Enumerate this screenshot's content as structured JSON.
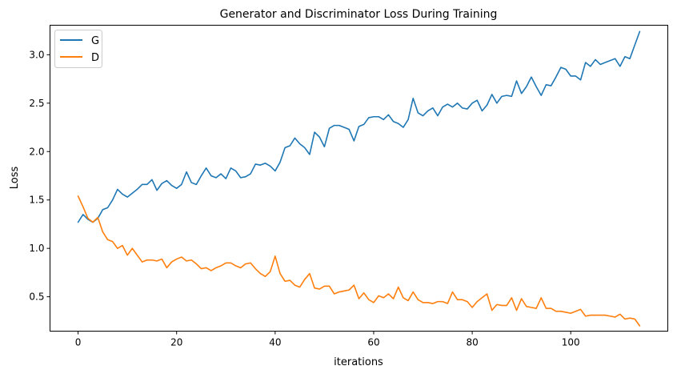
{
  "chart_data": {
    "type": "line",
    "title": "Generator and Discriminator Loss During Training",
    "xlabel": "iterations",
    "ylabel": "Loss",
    "xlim": [
      -5.7,
      119.7
    ],
    "ylim": [
      0.145,
      3.305
    ],
    "xticks": [
      0,
      20,
      40,
      60,
      80,
      100
    ],
    "yticks": [
      0.5,
      1.0,
      1.5,
      2.0,
      2.5,
      3.0
    ],
    "xtick_labels": [
      "0",
      "20",
      "40",
      "60",
      "80",
      "100"
    ],
    "ytick_labels": [
      "0.5",
      "1.0",
      "1.5",
      "2.0",
      "2.5",
      "3.0"
    ],
    "legend_position": "upper-left",
    "series": [
      {
        "name": "G",
        "color": "#1f77b4",
        "values": [
          1.27,
          1.35,
          1.3,
          1.27,
          1.31,
          1.4,
          1.42,
          1.5,
          1.61,
          1.56,
          1.53,
          1.57,
          1.61,
          1.66,
          1.66,
          1.71,
          1.6,
          1.67,
          1.7,
          1.65,
          1.62,
          1.66,
          1.79,
          1.68,
          1.66,
          1.75,
          1.83,
          1.75,
          1.73,
          1.77,
          1.72,
          1.83,
          1.8,
          1.73,
          1.74,
          1.77,
          1.87,
          1.86,
          1.88,
          1.85,
          1.8,
          1.89,
          2.04,
          2.06,
          2.14,
          2.08,
          2.04,
          1.97,
          2.2,
          2.15,
          2.05,
          2.24,
          2.27,
          2.27,
          2.25,
          2.23,
          2.11,
          2.26,
          2.28,
          2.35,
          2.36,
          2.36,
          2.33,
          2.38,
          2.31,
          2.29,
          2.25,
          2.33,
          2.55,
          2.4,
          2.37,
          2.42,
          2.45,
          2.37,
          2.46,
          2.49,
          2.46,
          2.5,
          2.45,
          2.44,
          2.5,
          2.53,
          2.42,
          2.48,
          2.59,
          2.5,
          2.57,
          2.58,
          2.57,
          2.73,
          2.6,
          2.67,
          2.77,
          2.67,
          2.58,
          2.69,
          2.68,
          2.77,
          2.87,
          2.85,
          2.78,
          2.78,
          2.74,
          2.92,
          2.88,
          2.95,
          2.9,
          2.92,
          2.94,
          2.96,
          2.88,
          2.98,
          2.96,
          3.1,
          3.24
        ]
      },
      {
        "name": "D",
        "color": "#ff7f0e",
        "values": [
          1.54,
          1.43,
          1.31,
          1.27,
          1.32,
          1.17,
          1.09,
          1.07,
          1.0,
          1.03,
          0.93,
          1.0,
          0.93,
          0.86,
          0.88,
          0.88,
          0.87,
          0.89,
          0.8,
          0.86,
          0.89,
          0.91,
          0.87,
          0.88,
          0.84,
          0.79,
          0.8,
          0.77,
          0.8,
          0.82,
          0.85,
          0.85,
          0.82,
          0.8,
          0.84,
          0.85,
          0.79,
          0.74,
          0.71,
          0.76,
          0.92,
          0.74,
          0.66,
          0.67,
          0.62,
          0.6,
          0.68,
          0.74,
          0.59,
          0.58,
          0.61,
          0.61,
          0.53,
          0.55,
          0.56,
          0.57,
          0.62,
          0.48,
          0.54,
          0.47,
          0.44,
          0.51,
          0.49,
          0.53,
          0.48,
          0.6,
          0.49,
          0.46,
          0.55,
          0.47,
          0.44,
          0.44,
          0.43,
          0.45,
          0.45,
          0.43,
          0.55,
          0.47,
          0.47,
          0.45,
          0.39,
          0.45,
          0.49,
          0.53,
          0.36,
          0.42,
          0.41,
          0.41,
          0.49,
          0.36,
          0.48,
          0.4,
          0.39,
          0.38,
          0.49,
          0.38,
          0.38,
          0.35,
          0.35,
          0.34,
          0.33,
          0.35,
          0.37,
          0.3,
          0.31,
          0.31,
          0.31,
          0.31,
          0.3,
          0.29,
          0.32,
          0.27,
          0.28,
          0.27,
          0.2
        ]
      }
    ]
  }
}
